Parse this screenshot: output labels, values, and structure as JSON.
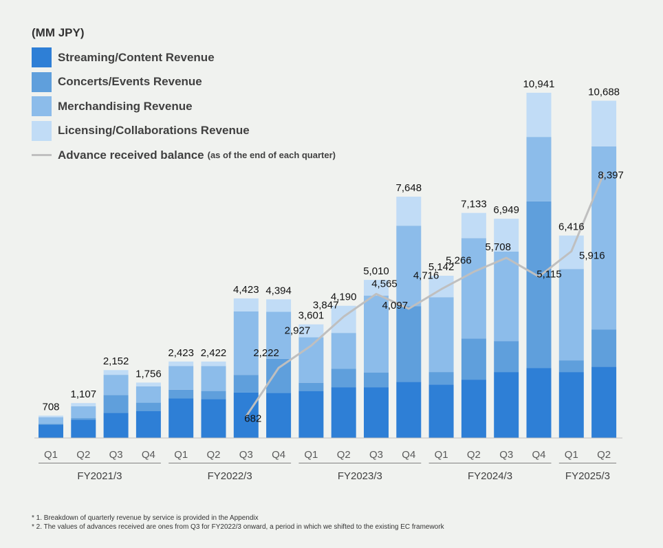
{
  "unit_label": "(MM JPY)",
  "colors": {
    "streaming": "#2e7fd6",
    "concerts": "#5f9fdc",
    "merch": "#8cbcea",
    "licensing": "#c1dcf6",
    "line": "#bfbfbf",
    "axis": "#bfbfbf"
  },
  "legend": {
    "streaming": "Streaming/Content Revenue",
    "concerts": "Concerts/Events Revenue",
    "merch": "Merchandising Revenue",
    "licensing": "Licensing/Collaborations Revenue",
    "line_main": "Advance received balance",
    "line_sub": "(as of the end of each quarter)"
  },
  "chart_data": {
    "type": "bar",
    "stacked": true,
    "categories": [
      "Q1",
      "Q2",
      "Q3",
      "Q4",
      "Q1",
      "Q2",
      "Q3",
      "Q4",
      "Q1",
      "Q2",
      "Q3",
      "Q4",
      "Q1",
      "Q2",
      "Q3",
      "Q4",
      "Q1",
      "Q2"
    ],
    "groups": [
      {
        "label": "FY2021/3",
        "start": 0,
        "end": 3
      },
      {
        "label": "FY2022/3",
        "start": 4,
        "end": 7
      },
      {
        "label": "FY2023/3",
        "start": 8,
        "end": 11
      },
      {
        "label": "FY2024/3",
        "start": 12,
        "end": 15
      },
      {
        "label": "FY2025/3",
        "start": 16,
        "end": 17
      }
    ],
    "series": [
      {
        "name": "Streaming/Content Revenue",
        "key": "streaming",
        "values": [
          430,
          580,
          800,
          850,
          1260,
          1230,
          1440,
          1430,
          1490,
          1610,
          1610,
          1780,
          1690,
          1850,
          2090,
          2220,
          2090,
          2260
        ]
      },
      {
        "name": "Concerts/Events Revenue",
        "key": "concerts",
        "values": [
          20,
          50,
          560,
          270,
          270,
          260,
          560,
          1080,
          260,
          580,
          460,
          2400,
          400,
          1300,
          980,
          5280,
          370,
          1180
        ]
      },
      {
        "name": "Merchandising Revenue",
        "key": "merch",
        "values": [
          210,
          377,
          642,
          518,
          753,
          792,
          2013,
          1490,
          1441,
          1140,
          2440,
          2548,
          2372,
          3183,
          2839,
          2041,
          2896,
          5801
        ]
      },
      {
        "name": "Licensing/Collaborations Revenue",
        "key": "licensing",
        "values": [
          48,
          100,
          150,
          118,
          140,
          140,
          410,
          394,
          410,
          860,
          500,
          920,
          680,
          800,
          1040,
          1400,
          1060,
          1447
        ]
      }
    ],
    "totals": [
      708,
      1107,
      2152,
      1756,
      2423,
      2422,
      4423,
      4394,
      3601,
      4190,
      5010,
      7648,
      5142,
      7133,
      6949,
      10941,
      6416,
      10688
    ],
    "total_labels": [
      "708",
      "1,107",
      "2,152",
      "1,756",
      "2,423",
      "2,422",
      "4,423",
      "4,394",
      "3,601",
      "4,190",
      "5,010",
      "7,648",
      "5,142",
      "7,133",
      "6,949",
      "10,941",
      "6,416",
      "10,688"
    ],
    "line": {
      "name": "Advance received balance",
      "start_index": 6,
      "values": [
        682,
        2222,
        2927,
        3847,
        4565,
        4097,
        4716,
        5266,
        5708,
        5115,
        5916,
        8397
      ],
      "labels": [
        "682",
        "2,222",
        "2,927",
        "3,847",
        "4,565",
        "4,097",
        "4,716",
        "5,266",
        "5,708",
        "5,115",
        "5,916",
        "8,397"
      ]
    },
    "ylim": [
      0,
      11200
    ],
    "xlabel": "",
    "ylabel": ""
  },
  "footnotes": [
    "* 1. Breakdown of quarterly revenue by service is provided in the Appendix",
    "* 2. The values of advances received are ones from Q3 for FY2022/3 onward, a period in which we shifted to the existing EC framework"
  ]
}
